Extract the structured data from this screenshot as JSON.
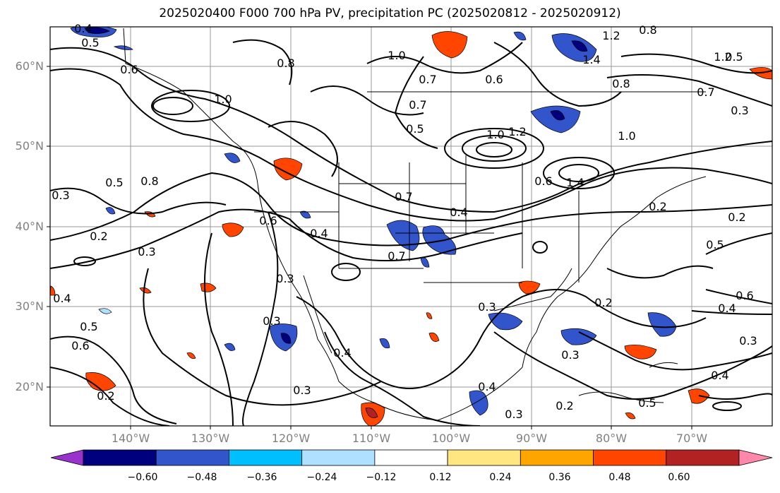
{
  "title": "2025020400 F000 700 hPa PV, precipitation PC (2025020812 - 2025020912)",
  "lat_labels": [
    "60°N",
    "50°N",
    "40°N",
    "30°N",
    "20°N"
  ],
  "lon_labels": [
    "140°W",
    "130°W",
    "120°W",
    "110°W",
    "100°W",
    "90°W",
    "80°W",
    "70°W"
  ],
  "colorbar": {
    "ticks": [
      "−0.60",
      "−0.48",
      "−0.36",
      "−0.24",
      "−0.12",
      "0.12",
      "0.24",
      "0.36",
      "0.48",
      "0.60"
    ],
    "colors": [
      "#9933cc",
      "#00007f",
      "#3355cc",
      "#00bfff",
      "#b0e0ff",
      "#ffffff",
      "#ffe680",
      "#ffa500",
      "#ff4500",
      "#b22222",
      "#ff88aa"
    ]
  },
  "contour_labels": [
    "0.4",
    "0.5",
    "0.6",
    "1.0",
    "0.8",
    "0.7",
    "1.4",
    "1.2",
    "0.6",
    "0.7",
    "0.5",
    "1.0",
    "1.0",
    "0.8",
    "0.7",
    "1.0",
    "1.2",
    "0.6",
    "1.4",
    "1.2",
    "0.8",
    "0.5",
    "0.3",
    "0.3",
    "0.5",
    "0.8",
    "0.7",
    "0.4",
    "0.6",
    "0.2",
    "0.3",
    "0.7",
    "0.4",
    "0.3",
    "0.3",
    "0.4",
    "0.5",
    "0.6",
    "0.2",
    "0.3",
    "0.4",
    "0.3",
    "0.2",
    "0.3",
    "0.2",
    "0.2",
    "0.5",
    "0.6",
    "0.4",
    "0.3",
    "0.4",
    "0.5",
    "0.2",
    "0.3",
    "0.4"
  ]
}
